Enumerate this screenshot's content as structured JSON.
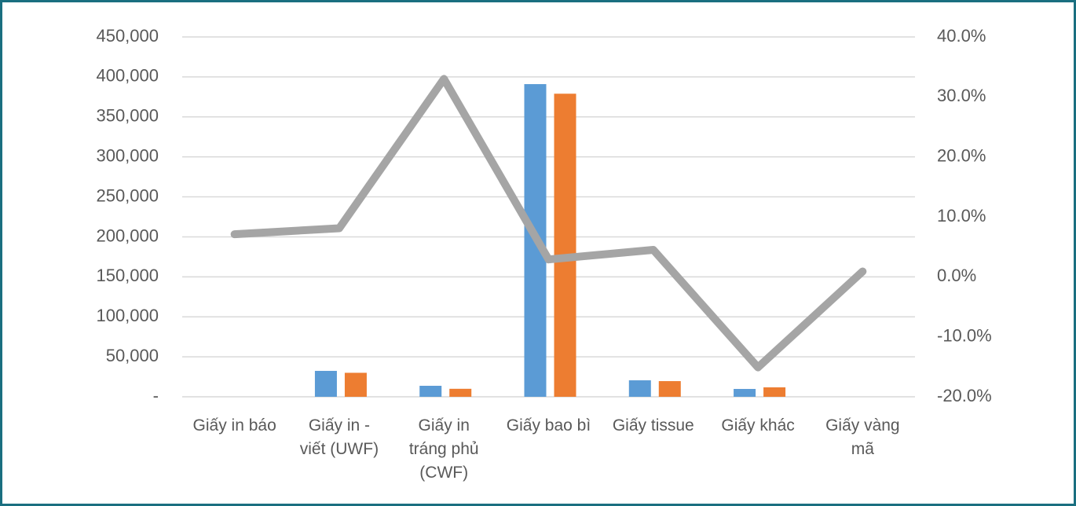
{
  "chart_data": {
    "type": "bar-line",
    "categories": [
      "Giấy in báo",
      "Giấy in - viết (UWF)",
      "Giấy in tráng phủ (CWF)",
      "Giấy bao bì",
      "Giấy tissue",
      "Giấy khác",
      "Giấy vàng mã"
    ],
    "series": [
      {
        "color": "#5b9bd5",
        "type": "bar",
        "values": [
          0,
          32400,
          13750,
          391000,
          20600,
          9800,
          0
        ]
      },
      {
        "color": "#ed7d31",
        "type": "bar",
        "values": [
          0,
          30000,
          10000,
          379000,
          19600,
          11800,
          0
        ]
      },
      {
        "color": "#a5a5a5",
        "type": "line",
        "axis": "y2",
        "values": [
          7.1,
          8.1,
          33.0,
          2.9,
          4.5,
          -15.1,
          0.9
        ]
      }
    ],
    "ylim": [
      0,
      450000
    ],
    "yticks": [
      {
        "value": 0,
        "label": "-"
      },
      {
        "value": 50000,
        "label": "50,000"
      },
      {
        "value": 100000,
        "label": "100,000"
      },
      {
        "value": 150000,
        "label": "150,000"
      },
      {
        "value": 200000,
        "label": "200,000"
      },
      {
        "value": 250000,
        "label": "250,000"
      },
      {
        "value": 300000,
        "label": "300,000"
      },
      {
        "value": 350000,
        "label": "350,000"
      },
      {
        "value": 400000,
        "label": "400,000"
      },
      {
        "value": 450000,
        "label": "450,000"
      }
    ],
    "y2lim": [
      -20,
      40
    ],
    "y2ticks": [
      {
        "value": -20,
        "label": "-20.0%"
      },
      {
        "value": -10,
        "label": "-10.0%"
      },
      {
        "value": 0,
        "label": "0.0%"
      },
      {
        "value": 10,
        "label": "10.0%"
      },
      {
        "value": 20,
        "label": "20.0%"
      },
      {
        "value": 30,
        "label": "30.0%"
      },
      {
        "value": 40,
        "label": "40.0%"
      }
    ],
    "grid": true
  }
}
